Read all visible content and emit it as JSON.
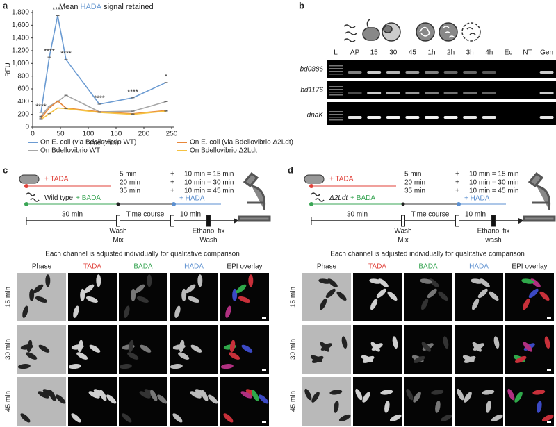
{
  "chart_data": {
    "type": "line",
    "panel_label": "a",
    "title": [
      "Mean",
      "HADA",
      "signal retained"
    ],
    "xlabel": "Time (min)",
    "ylabel": "RFU",
    "x": [
      15,
      30,
      45,
      60,
      120,
      180,
      240
    ],
    "series": [
      {
        "name": "On E. coli (via Bdellovibrio WT)",
        "color": "#6b9bd2",
        "values": [
          230,
          1100,
          1750,
          1060,
          360,
          460,
          700
        ]
      },
      {
        "name": "On Bdellovibrio WT",
        "color": "#a6a6a6",
        "values": [
          170,
          330,
          400,
          500,
          240,
          250,
          400
        ]
      },
      {
        "name": "On E. coli (via Bdellovibrio Δ2Ldt)",
        "color": "#e8873a",
        "values": [
          140,
          300,
          410,
          300,
          240,
          210,
          260
        ]
      },
      {
        "name": "On Bdellovibrio Δ2Ldt",
        "color": "#f5c242",
        "values": [
          120,
          210,
          300,
          290,
          230,
          200,
          250
        ]
      }
    ],
    "significance": [
      "****",
      "****",
      "****",
      "****",
      "****",
      "****",
      "*"
    ],
    "xlim": [
      0,
      250
    ],
    "xticks": [
      0,
      50,
      100,
      150,
      200,
      250
    ],
    "ylim": [
      0,
      1800
    ],
    "yticks": [
      0,
      200,
      400,
      600,
      800,
      {
        "value": 1000,
        "label": "1,000"
      },
      {
        "value": 1200,
        "label": "1,200"
      },
      {
        "value": 1400,
        "label": "1,400"
      },
      {
        "value": 1600,
        "label": "1,600"
      },
      {
        "value": 1800,
        "label": "1,800"
      }
    ]
  },
  "gel": {
    "panel_label": "b",
    "lanes": [
      "L",
      "AP",
      "15",
      "30",
      "45",
      "1h",
      "2h",
      "3h",
      "4h",
      "Ec",
      "NT",
      "Gen"
    ],
    "genes": [
      "bd0886",
      "bd1176",
      "dnaK"
    ]
  },
  "panels": [
    {
      "panel_label": "c",
      "tada": "+ TADA",
      "strain": "Wild type",
      "bada": "+ BADA",
      "hada": "+ HADA",
      "timing": [
        [
          "5 min",
          "+",
          "10 min = 15 min"
        ],
        [
          "20 min",
          "+",
          "10 min = 30 min"
        ],
        [
          "35 min",
          "+",
          "10 min = 45 min"
        ]
      ],
      "durations": [
        "30 min",
        "Time course",
        "10 min"
      ],
      "steps": [
        [
          "Wash",
          "Mix"
        ],
        [
          "Ethanol fix",
          "Wash"
        ]
      ],
      "caption": "Each channel is adjusted individually for qualitative comparison",
      "columns": [
        "Phase",
        "TADA",
        "BADA",
        "HADA",
        "EPI overlay"
      ],
      "rows": [
        "15 min",
        "30 min",
        "45 min"
      ]
    },
    {
      "panel_label": "d",
      "tada": "+ TADA",
      "strain": "Δ2Ldt",
      "bada": "+ BADA",
      "hada": "+ HADA",
      "timing": [
        [
          "5 min",
          "+",
          "10 min = 15 min"
        ],
        [
          "20 min",
          "+",
          "10 min = 30 min"
        ],
        [
          "35 min",
          "+",
          "10 min = 45 min"
        ]
      ],
      "durations": [
        "30 min",
        "Time course",
        "10 min"
      ],
      "steps": [
        [
          "Wash",
          "Mix"
        ],
        [
          "Ethanol fix",
          "wash"
        ]
      ],
      "caption": "Each channel is adjusted individually for qualitative comparison",
      "columns": [
        "Phase",
        "TADA",
        "BADA",
        "HADA",
        "EPI overlay"
      ],
      "rows": [
        "15 min",
        "30 min",
        "45 min"
      ]
    }
  ]
}
